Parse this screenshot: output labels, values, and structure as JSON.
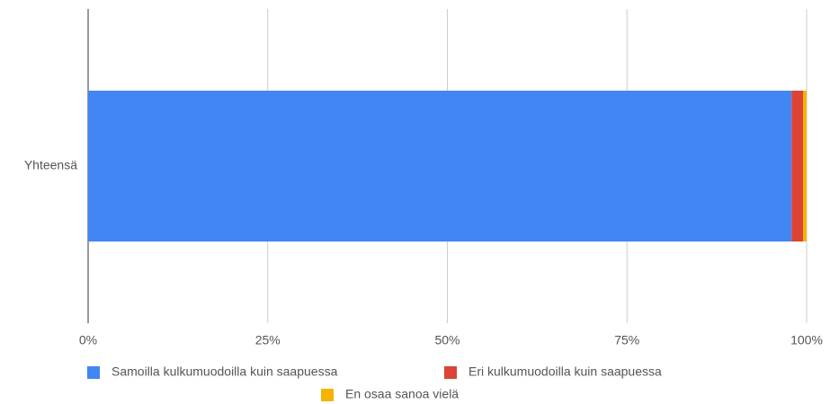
{
  "chart_data": {
    "type": "stacked-bar-horizontal",
    "categories": [
      "Yhteensä"
    ],
    "series": [
      {
        "name": "Samoilla kulkumuodoilla kuin saapuessa",
        "color": "#4285f4",
        "values": [
          97.9
        ]
      },
      {
        "name": "Eri kulkumuodoilla kuin saapuessa",
        "color": "#db4437",
        "values": [
          1.6
        ]
      },
      {
        "name": "En osaa sanoa vielä",
        "color": "#f4b400",
        "values": [
          0.5
        ]
      }
    ],
    "xlim": [
      0,
      100
    ],
    "xticks": [
      {
        "value": 0,
        "label": "0%"
      },
      {
        "value": 25,
        "label": "25%"
      },
      {
        "value": 50,
        "label": "50%"
      },
      {
        "value": 75,
        "label": "75%"
      },
      {
        "value": 100,
        "label": "100%"
      }
    ],
    "grid": true,
    "legend": "bottom"
  }
}
